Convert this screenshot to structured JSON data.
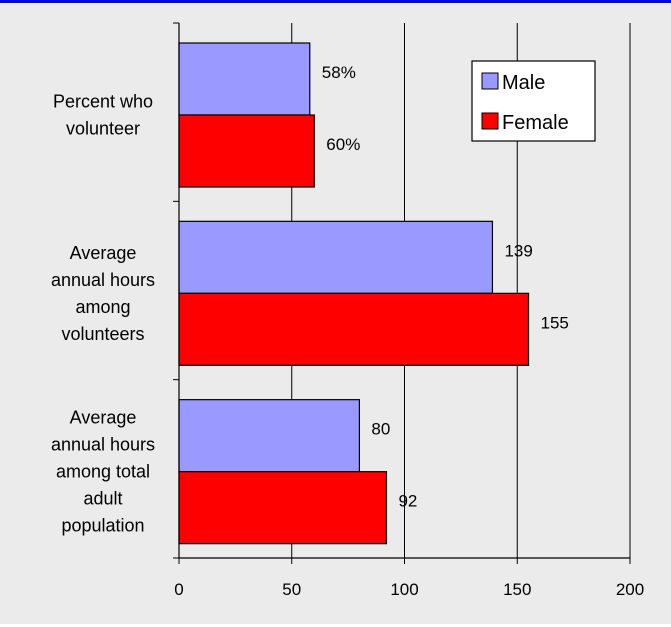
{
  "chart_data": {
    "type": "bar",
    "orientation": "horizontal",
    "categories": [
      [
        "Percent who",
        "volunteer"
      ],
      [
        "Average",
        "annual hours",
        "among",
        "volunteers"
      ],
      [
        "Average",
        "annual hours",
        "among total",
        "adult",
        "population"
      ]
    ],
    "series": [
      {
        "name": "Male",
        "color": "#9999ff",
        "values": [
          58,
          139,
          80
        ],
        "labels": [
          "58%",
          "139",
          "80"
        ]
      },
      {
        "name": "Female",
        "color": "#ff0000",
        "values": [
          60,
          155,
          92
        ],
        "labels": [
          "60%",
          "155",
          "92"
        ]
      }
    ],
    "xlim": [
      0,
      200
    ],
    "xticks": [
      "0",
      "50",
      "100",
      "150",
      "200"
    ],
    "grid": "vertical",
    "legend_position": "top-right",
    "title": "",
    "xlabel": "",
    "ylabel": ""
  },
  "colors": {
    "background": "#ebebeb",
    "plot_area": "#ebebeb",
    "top_border": "#0000ee"
  }
}
